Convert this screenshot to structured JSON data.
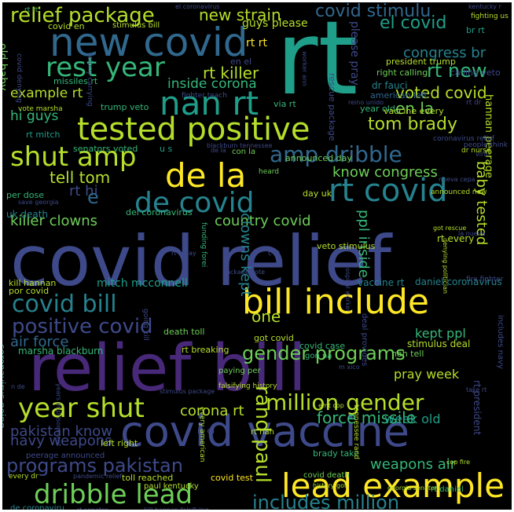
{
  "palette": {
    "background": "#000000",
    "colors": [
      "#fde725",
      "#b5de2b",
      "#6ece58",
      "#35b779",
      "#1f9e89",
      "#26828e",
      "#31688e",
      "#3e4989",
      "#482878",
      "#440154"
    ]
  },
  "words": [
    {
      "text": "rt",
      "color": "#1f9e89",
      "vertical": false
    },
    {
      "text": "covid relief",
      "color": "#3e4989",
      "vertical": false
    },
    {
      "text": "relief bill",
      "color": "#482878",
      "vertical": false
    },
    {
      "text": "covid vaccine",
      "color": "#3e4989",
      "vertical": false
    },
    {
      "text": "new covid",
      "color": "#31688e",
      "vertical": false
    },
    {
      "text": "tested positive",
      "color": "#b5de2b",
      "vertical": false
    },
    {
      "text": "bill include",
      "color": "#fde725",
      "vertical": false
    },
    {
      "text": "lead example",
      "color": "#fde725",
      "vertical": false
    },
    {
      "text": "de la",
      "color": "#fde725",
      "vertical": false
    },
    {
      "text": "nan rt",
      "color": "#1f9e89",
      "vertical": false
    },
    {
      "text": "rt covid",
      "color": "#26828e",
      "vertical": false
    },
    {
      "text": "de covid",
      "color": "#26828e",
      "vertical": false
    },
    {
      "text": "shut amp",
      "color": "#b5de2b",
      "vertical": false
    },
    {
      "text": "amp dribble",
      "color": "#31688e",
      "vertical": false
    },
    {
      "text": "dribble lead",
      "color": "#6ece58",
      "vertical": false
    },
    {
      "text": "year shut",
      "color": "#b5de2b",
      "vertical": false
    },
    {
      "text": "rest year",
      "color": "#35b779",
      "vertical": false
    },
    {
      "text": "covid bill",
      "color": "#26828e",
      "vertical": false
    },
    {
      "text": "positive covid",
      "color": "#3e4989",
      "vertical": false
    },
    {
      "text": "relief package",
      "color": "#b5de2b",
      "vertical": false
    },
    {
      "text": "covid stimulu",
      "color": "#31688e",
      "vertical": false
    },
    {
      "text": "el covid",
      "color": "#1f9e89",
      "vertical": false
    },
    {
      "text": "million gender",
      "color": "#b5de2b",
      "vertical": false
    },
    {
      "text": "gender programs",
      "color": "#6ece58",
      "vertical": false
    },
    {
      "text": "programs pakistan",
      "color": "#3e4989",
      "vertical": false
    },
    {
      "text": "includes million",
      "color": "#26828e",
      "vertical": false
    },
    {
      "text": "rand paul",
      "color": "#b5de2b",
      "vertical": true
    },
    {
      "text": "tom brady",
      "color": "#b5de2b",
      "vertical": false
    },
    {
      "text": "new strain",
      "color": "#b5de2b",
      "vertical": false
    },
    {
      "text": "rt new",
      "color": "#35b779",
      "vertical": false
    },
    {
      "text": "rt killer",
      "color": "#b5de2b",
      "vertical": false
    },
    {
      "text": "killer clowns",
      "color": "#6ece58",
      "vertical": false
    },
    {
      "text": "tell tom",
      "color": "#b5de2b",
      "vertical": false
    },
    {
      "text": "know congress",
      "color": "#6ece58",
      "vertical": false
    },
    {
      "text": "country covid",
      "color": "#6ece58",
      "vertical": false
    },
    {
      "text": "clowns kept",
      "color": "#26828e",
      "vertical": true
    },
    {
      "text": "ppl inside",
      "color": "#35b779",
      "vertical": true
    },
    {
      "text": "baby tested",
      "color": "#b5de2b",
      "vertical": true
    },
    {
      "text": "congress br",
      "color": "#26828e",
      "vertical": false
    },
    {
      "text": "voted covid",
      "color": "#b5de2b",
      "vertical": false
    },
    {
      "text": "en la",
      "color": "#6ece58",
      "vertical": false
    },
    {
      "text": "inside corona",
      "color": "#35b779",
      "vertical": false
    },
    {
      "text": "example rt",
      "color": "#b5de2b",
      "vertical": false
    },
    {
      "text": "hi guys",
      "color": "#35b779",
      "vertical": false
    },
    {
      "text": "guys please",
      "color": "#b5de2b",
      "vertical": false
    },
    {
      "text": "please pray",
      "color": "#3e4989",
      "vertical": true
    },
    {
      "text": "rt rt",
      "color": "#fde725",
      "vertical": false
    },
    {
      "text": "rt hi",
      "color": "#3e4989",
      "vertical": false
    },
    {
      "text": "e",
      "color": "#31688e",
      "vertical": false
    },
    {
      "text": "air force",
      "color": "#31688e",
      "vertical": false
    },
    {
      "text": "force missile",
      "color": "#35b779",
      "vertical": false
    },
    {
      "text": "weapons air",
      "color": "#35b779",
      "vertical": false
    },
    {
      "text": "navy weapons",
      "color": "#3e4989",
      "vertical": false
    },
    {
      "text": "pakistan know",
      "color": "#3e4989",
      "vertical": false
    },
    {
      "text": "corona rt",
      "color": "#b5de2b",
      "vertical": false
    },
    {
      "text": "one",
      "color": "#b5de2b",
      "vertical": false
    },
    {
      "text": "kept ppl",
      "color": "#35b779",
      "vertical": false
    },
    {
      "text": "pray week",
      "color": "#b5de2b",
      "vertical": false
    },
    {
      "text": "week old",
      "color": "#1f9e89",
      "vertical": false
    },
    {
      "text": "mitch mcconnell",
      "color": "#1f9e89",
      "vertical": false
    },
    {
      "text": "daniel coronavirus",
      "color": "#26828e",
      "vertical": false
    },
    {
      "text": "vaccine rt",
      "color": "#26828e",
      "vertical": false
    },
    {
      "text": "rt every",
      "color": "#b5de2b",
      "vertical": false
    },
    {
      "text": "stimulus deal",
      "color": "#b5de2b",
      "vertical": false
    },
    {
      "text": "president trump",
      "color": "#b5de2b",
      "vertical": false
    },
    {
      "text": "right calling",
      "color": "#6ece58",
      "vertical": false
    },
    {
      "text": "calling veto",
      "color": "#3e4989",
      "vertical": false
    },
    {
      "text": "dr fauci",
      "color": "#26828e",
      "vertical": false
    },
    {
      "text": "american left",
      "color": "#31688e",
      "vertical": false
    },
    {
      "text": "old baby",
      "color": "#6ece58",
      "vertical": true
    },
    {
      "text": "missiles rt",
      "color": "#35b779",
      "vertical": false
    },
    {
      "text": "trump veto",
      "color": "#35b779",
      "vertical": false
    },
    {
      "text": "rt mitch",
      "color": "#1f9e89",
      "vertical": false
    },
    {
      "text": "senators voted",
      "color": "#35b779",
      "vertical": false
    },
    {
      "text": "u s",
      "color": "#1f9e89",
      "vertical": false
    },
    {
      "text": "announced day",
      "color": "#6ece58",
      "vertical": false
    },
    {
      "text": "day uk",
      "color": "#b5de2b",
      "vertical": false
    },
    {
      "text": "uk death",
      "color": "#26828e",
      "vertical": false
    },
    {
      "text": "per dose",
      "color": "#35b779",
      "vertical": false
    },
    {
      "text": "del coronavirus",
      "color": "#35b779",
      "vertical": false
    },
    {
      "text": "veto stimulus",
      "color": "#b5de2b",
      "vertical": false
    },
    {
      "text": "kill hannan",
      "color": "#b5de2b",
      "vertical": false
    },
    {
      "text": "por covid",
      "color": "#b5de2b",
      "vertical": false
    },
    {
      "text": "death toll",
      "color": "#6ece58",
      "vertical": false
    },
    {
      "text": "got covid",
      "color": "#b5de2b",
      "vertical": false
    },
    {
      "text": "covid case",
      "color": "#35b779",
      "vertical": false
    },
    {
      "text": "gon na",
      "color": "#35b779",
      "vertical": false
    },
    {
      "text": "rt breaking",
      "color": "#b5de2b",
      "vertical": false
    },
    {
      "text": "nah tell",
      "color": "#6ece58",
      "vertical": false
    },
    {
      "text": "marsha blackburn",
      "color": "#35b779",
      "vertical": false
    },
    {
      "text": "paying per",
      "color": "#6ece58",
      "vertical": false
    },
    {
      "text": "rt el",
      "color": "#3e4989",
      "vertical": false
    },
    {
      "text": "left right",
      "color": "#b5de2b",
      "vertical": false
    },
    {
      "text": "brady take",
      "color": "#35b779",
      "vertical": false
    },
    {
      "text": "rt nah",
      "color": "#b5de2b",
      "vertical": false
    },
    {
      "text": "rt daniel",
      "color": "#35b779",
      "vertical": false
    },
    {
      "text": "covid test",
      "color": "#fde725",
      "vertical": false
    },
    {
      "text": "toll reached",
      "color": "#b5de2b",
      "vertical": false
    },
    {
      "text": "paul kentucky",
      "color": "#b5de2b",
      "vertical": false
    },
    {
      "text": "peerage announced",
      "color": "#3e4989",
      "vertical": false
    },
    {
      "text": "covid death",
      "color": "#6ece58",
      "vertical": false
    },
    {
      "text": "de coronaviru",
      "color": "#26828e",
      "vertical": false
    },
    {
      "text": "el coronavirus",
      "color": "#3e4989",
      "vertical": false
    },
    {
      "text": "covid en",
      "color": "#b5de2b",
      "vertical": false
    },
    {
      "text": "stimulus bill",
      "color": "#b5de2b",
      "vertical": false
    },
    {
      "text": "vote marsha",
      "color": "#b5de2b",
      "vertical": false
    },
    {
      "text": "hannan peerage",
      "color": "#b5de2b",
      "vertical": true
    },
    {
      "text": "rt president",
      "color": "#3e4989",
      "vertical": true
    },
    {
      "text": "includes navy",
      "color": "#3e4989",
      "vertical": true
    },
    {
      "text": "dr nurse",
      "color": "#b5de2b",
      "vertical": false
    },
    {
      "text": "fighting us",
      "color": "#b5de2b",
      "vertical": false
    },
    {
      "text": "kentucky r",
      "color": "#3e4989",
      "vertical": false
    },
    {
      "text": "br rt",
      "color": "#1f9e89",
      "vertical": false
    },
    {
      "text": "en el",
      "color": "#3e4989",
      "vertical": false
    },
    {
      "text": "via rt",
      "color": "#35b779",
      "vertical": false
    },
    {
      "text": "rt dr",
      "color": "#3e4989",
      "vertical": false
    },
    {
      "text": "year old",
      "color": "#35b779",
      "vertical": false
    },
    {
      "text": "vaccine every",
      "color": "#b5de2b",
      "vertical": false
    },
    {
      "text": "con la",
      "color": "#6ece58",
      "vertical": false
    },
    {
      "text": "heard",
      "color": "#6ece58",
      "vertical": false
    },
    {
      "text": "fighter teach",
      "color": "#3e4989",
      "vertical": false
    },
    {
      "text": "blackburn tennessee",
      "color": "#3e4989",
      "vertical": false
    },
    {
      "text": "coronavirus relief",
      "color": "#3e4989",
      "vertical": false
    },
    {
      "text": "people think",
      "color": "#3e4989",
      "vertical": false
    },
    {
      "text": "viru",
      "color": "#3e4989",
      "vertical": false
    },
    {
      "text": "nueva cepa",
      "color": "#3e4989",
      "vertical": false
    },
    {
      "text": "announced new",
      "color": "#b5de2b",
      "vertical": false
    },
    {
      "text": "got rescue",
      "color": "#b5de2b",
      "vertical": false
    },
    {
      "text": "la nueva",
      "color": "#3e4989",
      "vertical": false
    },
    {
      "text": "save georgia",
      "color": "#3e4989",
      "vertical": false
    },
    {
      "text": "rt today",
      "color": "#3e4989",
      "vertical": false
    },
    {
      "text": "c rt",
      "color": "#3e4989",
      "vertical": false
    },
    {
      "text": "package vote",
      "color": "#3e4989",
      "vertical": false
    },
    {
      "text": "fire fighter",
      "color": "#3e4989",
      "vertical": false
    },
    {
      "text": "coronavirus going",
      "color": "#1f9e89",
      "vertical": true
    },
    {
      "text": "going kill",
      "color": "#3e4989",
      "vertical": true
    },
    {
      "text": "funding forei",
      "color": "#35b779",
      "vertical": true
    },
    {
      "text": "deal provides",
      "color": "#3e4989",
      "vertical": true
    },
    {
      "text": "tennessee rand",
      "color": "#b5de2b",
      "vertical": true
    },
    {
      "text": "every american",
      "color": "#b5de2b",
      "vertical": true
    },
    {
      "text": "hospital worker",
      "color": "#3e4989",
      "vertical": true
    },
    {
      "text": "denying politician",
      "color": "#b5de2b",
      "vertical": true
    },
    {
      "text": "rescue package",
      "color": "#3e4989",
      "vertical": true
    },
    {
      "text": "covid denying",
      "color": "#3e4989",
      "vertical": true
    },
    {
      "text": "felony carrying",
      "color": "#3e4989",
      "vertical": true
    },
    {
      "text": "worker ann",
      "color": "#3e4989",
      "vertical": true
    },
    {
      "text": "years imprisonment",
      "color": "#3e4989",
      "vertical": true
    },
    {
      "text": "falsifying history",
      "color": "#b5de2b",
      "vertical": false
    },
    {
      "text": "emt cop",
      "color": "#b5de2b",
      "vertical": false
    },
    {
      "text": "m xico",
      "color": "#3e4989",
      "vertical": false
    },
    {
      "text": "take rt",
      "color": "#3e4989",
      "vertical": false
    },
    {
      "text": "cop fire",
      "color": "#b5de2b",
      "vertical": false
    },
    {
      "text": "every dr",
      "color": "#b5de2b",
      "vertical": false
    },
    {
      "text": "pandemic relief",
      "color": "#3e4989",
      "vertical": false
    },
    {
      "text": "history got",
      "color": "#b5de2b",
      "vertical": false
    },
    {
      "text": "georgia senators",
      "color": "#b5de2b",
      "vertical": false
    },
    {
      "text": "rt senator",
      "color": "#3e4989",
      "vertical": false
    },
    {
      "text": "kill hannan falsifying",
      "color": "#3e4989",
      "vertical": false
    },
    {
      "text": "reino unido",
      "color": "#3e4989",
      "vertical": false
    },
    {
      "text": "de la",
      "color": "#3e4989",
      "vertical": false
    },
    {
      "text": "n de",
      "color": "#3e4989",
      "vertical": false
    },
    {
      "text": "rt rt",
      "color": "#35b779",
      "vertical": false
    },
    {
      "text": "stimulus package",
      "color": "#3e4989",
      "vertical": false
    }
  ]
}
